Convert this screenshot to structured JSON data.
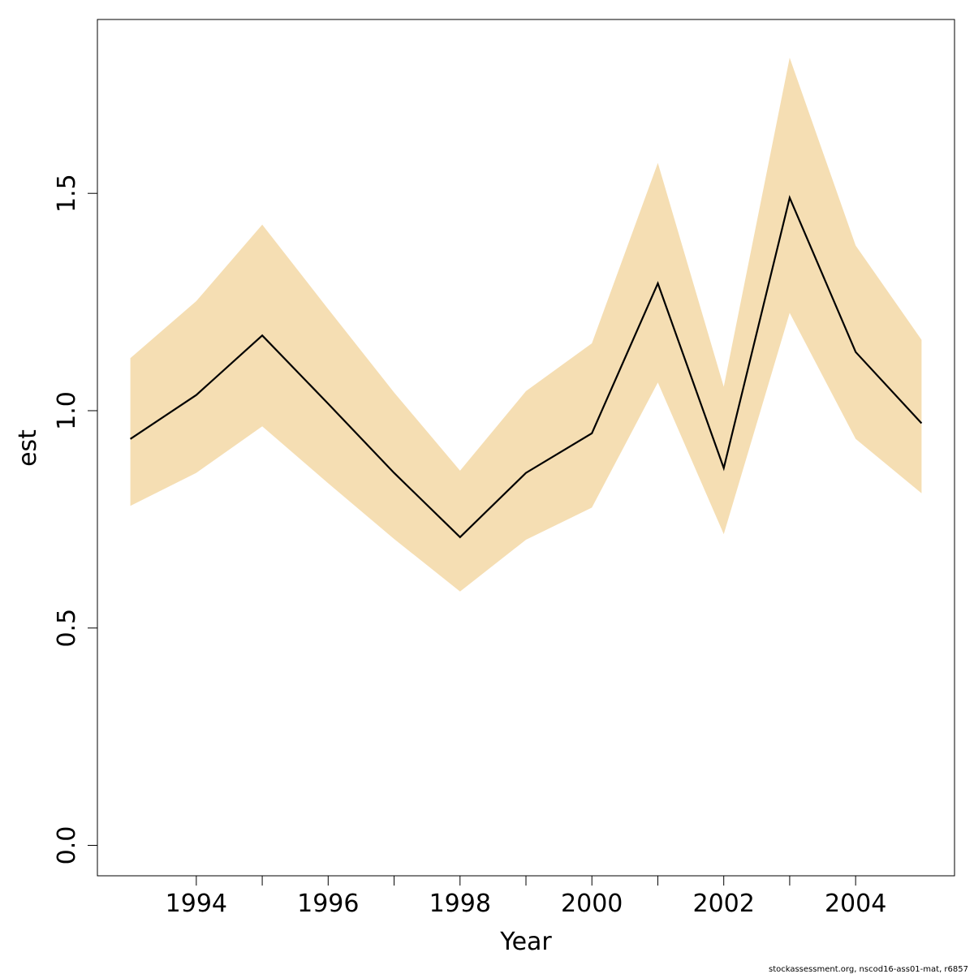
{
  "chart_data": {
    "type": "line",
    "title": "",
    "xlabel": "Year",
    "ylabel": "est",
    "xlim": [
      1992.5,
      2005.5
    ],
    "ylim": [
      -0.07,
      1.9
    ],
    "x_ticks": [
      1994,
      1996,
      1998,
      2000,
      2002,
      2004
    ],
    "x_tick_labels": [
      "1994",
      "1996",
      "1998",
      "2000",
      "2002",
      "2004"
    ],
    "y_ticks": [
      0.0,
      0.5,
      1.0,
      1.5
    ],
    "y_tick_labels": [
      "0.0",
      "0.5",
      "1.0",
      "1.5"
    ],
    "grid": false,
    "band_color": "#F5DEB3",
    "line_color": "#000000",
    "x": [
      1993,
      1994,
      1995,
      1996,
      1997,
      1998,
      1999,
      2000,
      2001,
      2002,
      2003,
      2004,
      2005
    ],
    "series": [
      {
        "values": [
          0.935,
          1.036,
          1.173,
          1.016,
          0.857,
          0.709,
          0.857,
          0.948,
          1.293,
          0.868,
          1.49,
          1.135,
          0.971
        ],
        "lower": [
          0.781,
          0.857,
          0.964,
          0.833,
          0.705,
          0.584,
          0.703,
          0.777,
          1.065,
          0.716,
          1.225,
          0.935,
          0.81
        ],
        "upper": [
          1.121,
          1.252,
          1.428,
          1.234,
          1.042,
          0.862,
          1.045,
          1.155,
          1.57,
          1.055,
          1.812,
          1.38,
          1.163
        ]
      }
    ]
  },
  "footer_text": "stockassessment.org, nscod16-ass01-mat, r6857"
}
